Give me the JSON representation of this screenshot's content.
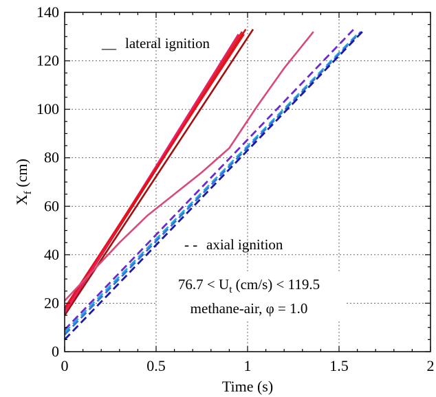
{
  "chart_data": {
    "type": "line",
    "xlabel": "Time (s)",
    "ylabel": "X",
    "ylabel_sub": "f",
    "ylabel_unit": " (cm)",
    "xlim": [
      0,
      2
    ],
    "ylim": [
      0,
      140
    ],
    "xticks": [
      0,
      0.5,
      1,
      1.5,
      2
    ],
    "xtick_labels": [
      "0",
      "0.5",
      "1",
      "1.5",
      "2"
    ],
    "yticks": [
      0,
      20,
      40,
      60,
      80,
      100,
      120,
      140
    ],
    "ytick_labels": [
      "0",
      "20",
      "40",
      "60",
      "80",
      "100",
      "120",
      "140"
    ],
    "grid": true,
    "legend": [
      {
        "marker": "__",
        "text": "lateral ignition",
        "color": "#e8101e"
      },
      {
        "marker": "- -",
        "text": "axial ignition",
        "color": "#1a1aa8"
      }
    ],
    "annotations": {
      "line1_pre": "76.7 < U",
      "line1_sub": "t",
      "line1_post": " (cm/s) < 119.5",
      "line2": "methane-air, φ = 1.0"
    },
    "series": [
      {
        "style": "solid",
        "color": "#a01010",
        "x": [
          0.0,
          1.03
        ],
        "y": [
          15,
          133
        ]
      },
      {
        "style": "solid",
        "color": "#d01418",
        "x": [
          0.0,
          0.99
        ],
        "y": [
          16,
          133
        ]
      },
      {
        "style": "solid",
        "color": "#e0201a",
        "x": [
          0.0,
          0.97
        ],
        "y": [
          17,
          132
        ]
      },
      {
        "style": "solid",
        "color": "#e8206a",
        "x": [
          0.0,
          0.95
        ],
        "y": [
          16,
          131
        ]
      },
      {
        "style": "solid",
        "color": "#e8101e",
        "x": [
          0.0,
          0.98
        ],
        "y": [
          18,
          131
        ]
      },
      {
        "style": "solid",
        "color": "#d84a78",
        "x": [
          0.0,
          0.15,
          0.3,
          0.45,
          0.6,
          0.75,
          0.9,
          1.05,
          1.2,
          1.36
        ],
        "y": [
          21,
          33,
          45,
          56,
          65,
          74,
          84,
          101,
          117,
          132
        ]
      },
      {
        "style": "dashed",
        "color": "#6a2ad0",
        "x": [
          0.0,
          1.58
        ],
        "y": [
          9,
          133
        ]
      },
      {
        "style": "dashed",
        "color": "#20b0e0",
        "x": [
          0.0,
          1.6
        ],
        "y": [
          8,
          131
        ]
      },
      {
        "style": "dashed",
        "color": "#3a70d8",
        "x": [
          0.0,
          1.62
        ],
        "y": [
          7,
          132
        ]
      },
      {
        "style": "dashed",
        "color": "#1a1aa8",
        "x": [
          0.0,
          1.64
        ],
        "y": [
          5,
          133
        ]
      }
    ]
  }
}
